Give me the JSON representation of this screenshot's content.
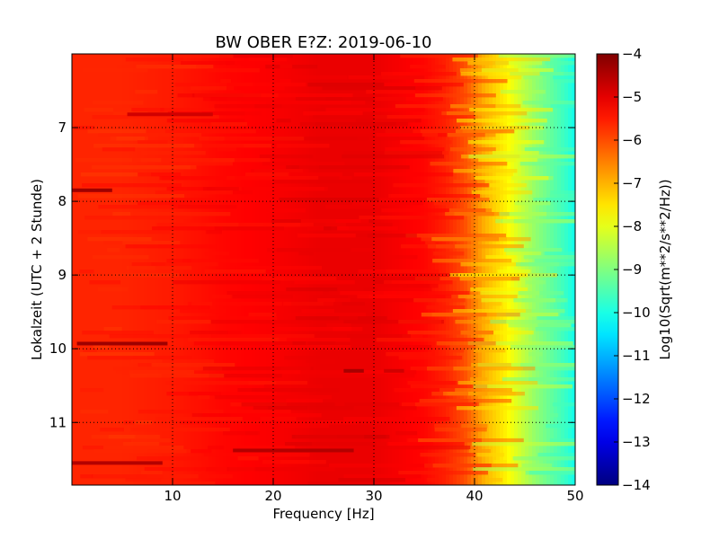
{
  "chart_data": {
    "type": "heatmap",
    "title": "BW OBER E?Z: 2019-06-10",
    "xlabel": "Frequency [Hz]",
    "ylabel": "Lokalzeit (UTC + 2 Stunde)",
    "xlim": [
      0,
      50
    ],
    "ylim": [
      6.0,
      11.85
    ],
    "y_axis_inverted": true,
    "x_ticks": [
      10,
      20,
      30,
      40,
      50
    ],
    "x_tick_labels": [
      "10",
      "20",
      "30",
      "40",
      "50"
    ],
    "y_ticks": [
      7,
      8,
      9,
      10,
      11
    ],
    "y_tick_labels": [
      "7",
      "8",
      "9",
      "10",
      "11"
    ],
    "grid": true,
    "colormap": "jet",
    "colorbar": {
      "label": "Log10(Sqrt(m**2/s**2/Hz))",
      "range": [
        -14,
        -4
      ],
      "ticks": [
        -4,
        -5,
        -6,
        -7,
        -8,
        -9,
        -10,
        -11,
        -12,
        -13,
        -14
      ],
      "tick_labels": [
        "−4",
        "−5",
        "−6",
        "−7",
        "−8",
        "−9",
        "−10",
        "−11",
        "−12",
        "−13",
        "−14"
      ]
    },
    "frequency_profile": {
      "frequency_hz": [
        0,
        5,
        10,
        15,
        20,
        25,
        30,
        35,
        37,
        39,
        40,
        41,
        42,
        43,
        44,
        45,
        46,
        47,
        48,
        49,
        50
      ],
      "log10_amplitude": [
        -5.6,
        -5.6,
        -5.5,
        -5.3,
        -5.2,
        -5.05,
        -5.05,
        -5.3,
        -5.55,
        -6.0,
        -6.5,
        -7.0,
        -7.3,
        -7.6,
        -8.0,
        -8.4,
        -8.8,
        -9.1,
        -9.4,
        -9.7,
        -10.1
      ]
    },
    "features": [
      {
        "time": 7.85,
        "freq_min": 0.0,
        "freq_max": 4.0,
        "log10_amplitude": -4.3
      },
      {
        "time": 9.93,
        "freq_min": 0.5,
        "freq_max": 9.5,
        "log10_amplitude": -4.3
      },
      {
        "time": 11.55,
        "freq_min": 0.0,
        "freq_max": 9.0,
        "log10_amplitude": -4.5
      },
      {
        "time": 11.38,
        "freq_min": 16.0,
        "freq_max": 28.0,
        "log10_amplitude": -4.5
      },
      {
        "time": 10.3,
        "freq_min": 27.0,
        "freq_max": 29.0,
        "log10_amplitude": -4.4
      },
      {
        "time": 6.82,
        "freq_min": 5.5,
        "freq_max": 14.0,
        "log10_amplitude": -4.8
      },
      {
        "time": 10.3,
        "freq_min": 31.0,
        "freq_max": 33.0,
        "log10_amplitude": -4.8
      }
    ]
  }
}
